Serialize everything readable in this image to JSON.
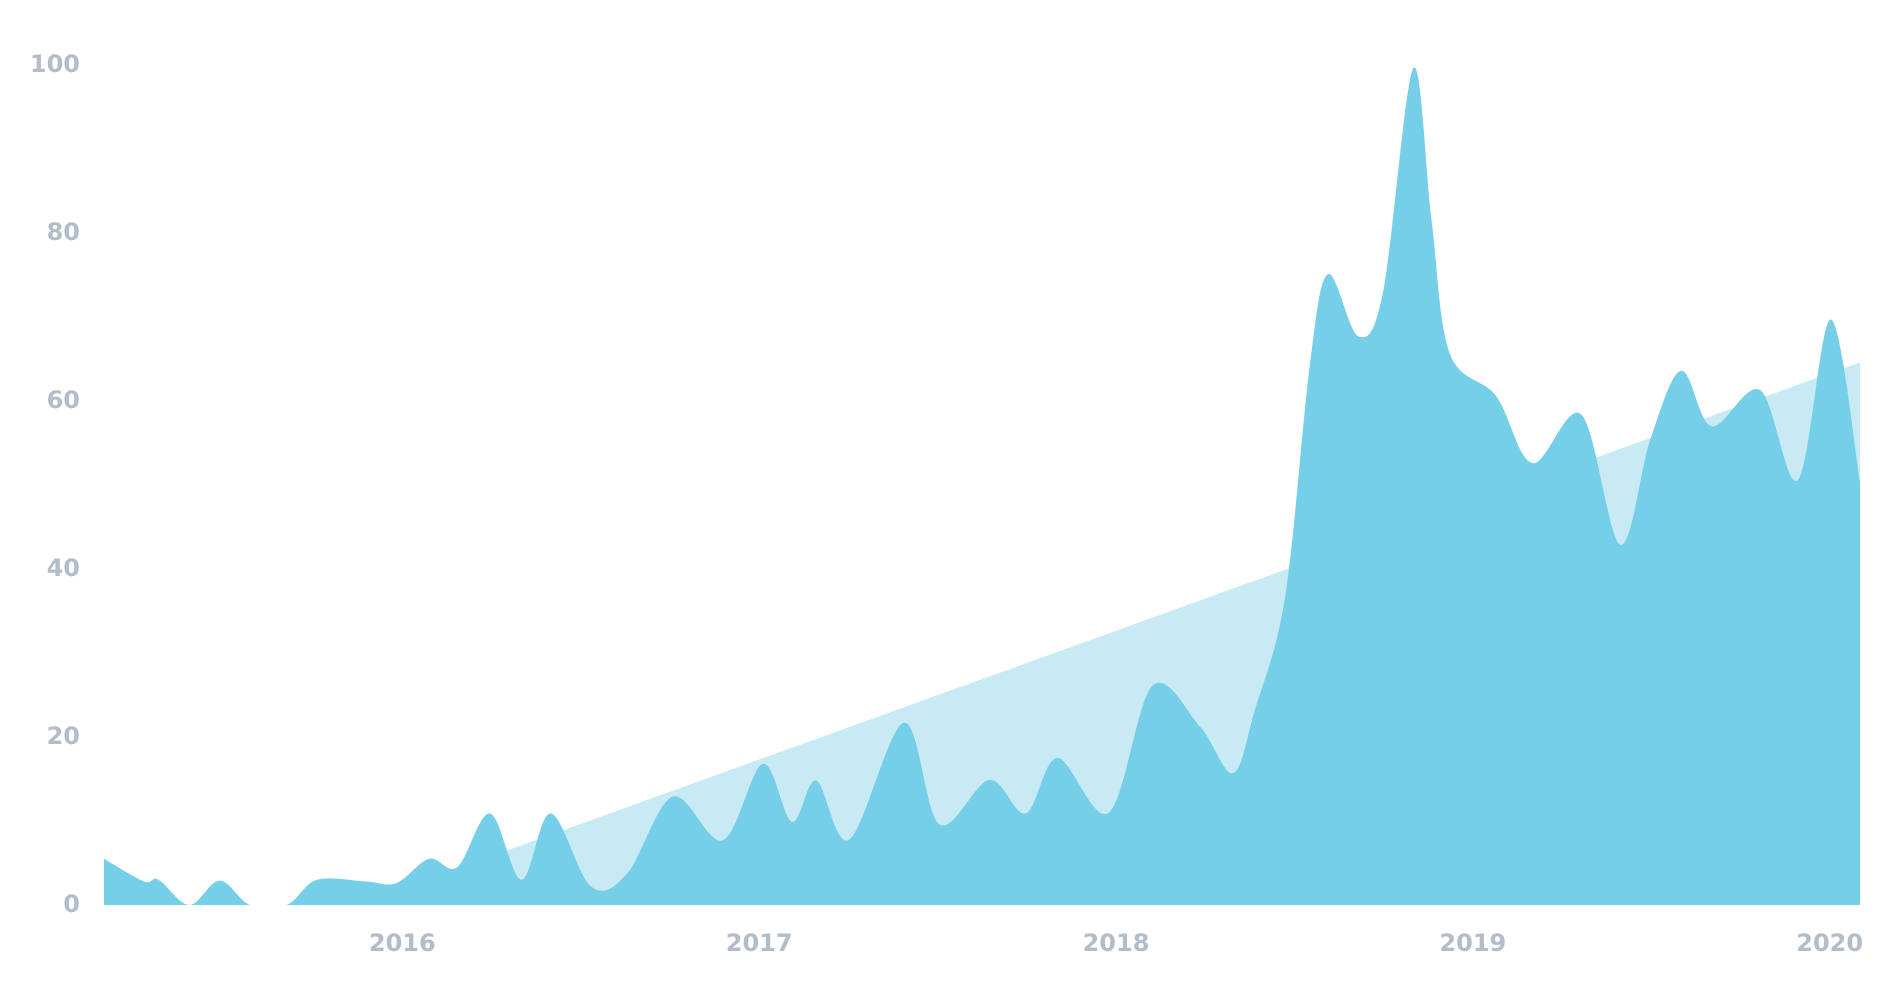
{
  "chart_data": {
    "type": "area",
    "xlim": [
      2015.164,
      2020.085
    ],
    "xticks": [
      2016,
      2017,
      2018,
      2019,
      2020
    ],
    "ylim": [
      0,
      100
    ],
    "yticks": [
      0,
      20,
      40,
      60,
      80,
      100
    ],
    "series": [
      {
        "color": "#c8eaf4",
        "x": [
          2015.87,
          2020.085
        ],
        "values": [
          0,
          64.6
        ]
      },
      {
        "color": "#76cfe8",
        "x": [
          2015.164,
          2015.276,
          2015.317,
          2015.403,
          2015.488,
          2015.573,
          2015.676,
          2015.761,
          2015.898,
          2015.983,
          2016.075,
          2016.154,
          2016.246,
          2016.334,
          2016.416,
          2016.529,
          2016.631,
          2016.758,
          2016.898,
          2017.01,
          2017.092,
          2017.16,
          2017.253,
          2017.406,
          2017.505,
          2017.645,
          2017.747,
          2017.836,
          2017.98,
          2018.102,
          2018.236,
          2018.328,
          2018.389,
          2018.474,
          2018.543,
          2018.594,
          2018.679,
          2018.748,
          2018.833,
          2018.884,
          2018.935,
          2019.065,
          2019.167,
          2019.304,
          2019.413,
          2019.498,
          2019.584,
          2019.669,
          2019.805,
          2019.911,
          2020.003,
          2020.085
        ],
        "values": [
          5.5,
          2.8,
          3.0,
          0,
          2.9,
          0,
          0,
          3.0,
          2.8,
          2.6,
          5.5,
          4.5,
          10.9,
          3.0,
          10.9,
          2.2,
          3.8,
          12.9,
          7.7,
          16.8,
          9.9,
          14.8,
          7.8,
          21.7,
          9.6,
          14.9,
          10.9,
          17.5,
          11.0,
          26.1,
          21.2,
          15.7,
          23.2,
          36.7,
          64.2,
          75.1,
          67.7,
          72.9,
          99.6,
          81.6,
          65.7,
          60.6,
          52.6,
          58.4,
          42.9,
          55.5,
          63.6,
          57.0,
          61.3,
          50.6,
          69.7,
          50.4
        ]
      }
    ]
  }
}
